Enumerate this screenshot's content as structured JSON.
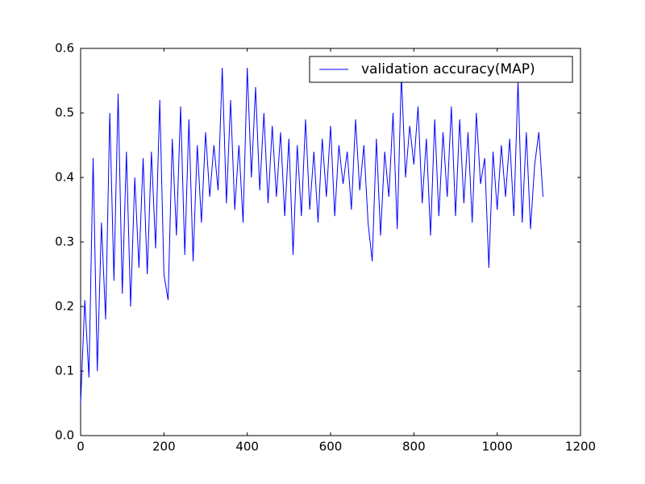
{
  "chart_data": {
    "type": "line",
    "x": [
      0,
      10,
      20,
      30,
      40,
      50,
      60,
      70,
      80,
      90,
      100,
      110,
      120,
      130,
      140,
      150,
      160,
      170,
      180,
      190,
      200,
      210,
      220,
      230,
      240,
      250,
      260,
      270,
      280,
      290,
      300,
      310,
      320,
      330,
      340,
      350,
      360,
      370,
      380,
      390,
      400,
      410,
      420,
      430,
      440,
      450,
      460,
      470,
      480,
      490,
      500,
      510,
      520,
      530,
      540,
      550,
      560,
      570,
      580,
      590,
      600,
      610,
      620,
      630,
      640,
      650,
      660,
      670,
      680,
      690,
      700,
      710,
      720,
      730,
      740,
      750,
      760,
      770,
      780,
      790,
      800,
      810,
      820,
      830,
      840,
      850,
      860,
      870,
      880,
      890,
      900,
      910,
      920,
      930,
      940,
      950,
      960,
      970,
      980,
      990,
      1000,
      1010,
      1020,
      1030,
      1040,
      1050,
      1060,
      1070,
      1080,
      1090,
      1100,
      1110
    ],
    "series": [
      {
        "name": "validation accuracy(MAP)",
        "color": "#0000ff",
        "values": [
          0.05,
          0.21,
          0.09,
          0.43,
          0.1,
          0.33,
          0.18,
          0.5,
          0.24,
          0.53,
          0.22,
          0.44,
          0.2,
          0.4,
          0.26,
          0.43,
          0.25,
          0.44,
          0.29,
          0.52,
          0.25,
          0.21,
          0.46,
          0.31,
          0.51,
          0.28,
          0.49,
          0.27,
          0.45,
          0.33,
          0.47,
          0.37,
          0.45,
          0.38,
          0.57,
          0.36,
          0.52,
          0.35,
          0.45,
          0.33,
          0.57,
          0.4,
          0.54,
          0.38,
          0.5,
          0.36,
          0.48,
          0.37,
          0.47,
          0.34,
          0.46,
          0.28,
          0.45,
          0.34,
          0.49,
          0.35,
          0.44,
          0.33,
          0.46,
          0.37,
          0.48,
          0.34,
          0.45,
          0.39,
          0.44,
          0.35,
          0.49,
          0.38,
          0.45,
          0.33,
          0.27,
          0.46,
          0.31,
          0.44,
          0.37,
          0.5,
          0.32,
          0.56,
          0.4,
          0.48,
          0.42,
          0.51,
          0.36,
          0.46,
          0.31,
          0.49,
          0.34,
          0.47,
          0.37,
          0.51,
          0.34,
          0.49,
          0.36,
          0.47,
          0.33,
          0.5,
          0.39,
          0.43,
          0.26,
          0.44,
          0.35,
          0.45,
          0.37,
          0.46,
          0.34,
          0.55,
          0.33,
          0.47,
          0.32,
          0.42,
          0.47,
          0.37
        ]
      }
    ],
    "xlim": [
      0,
      1200
    ],
    "xticks": [
      0,
      200,
      400,
      600,
      800,
      1000,
      1200
    ],
    "ylim": [
      0,
      0.6
    ],
    "yticks": [
      {
        "value": 0,
        "label": "0.0"
      },
      0.1,
      0.2,
      0.3,
      0.4,
      0.5,
      0.6
    ],
    "grid": false,
    "legend": "upper right"
  }
}
